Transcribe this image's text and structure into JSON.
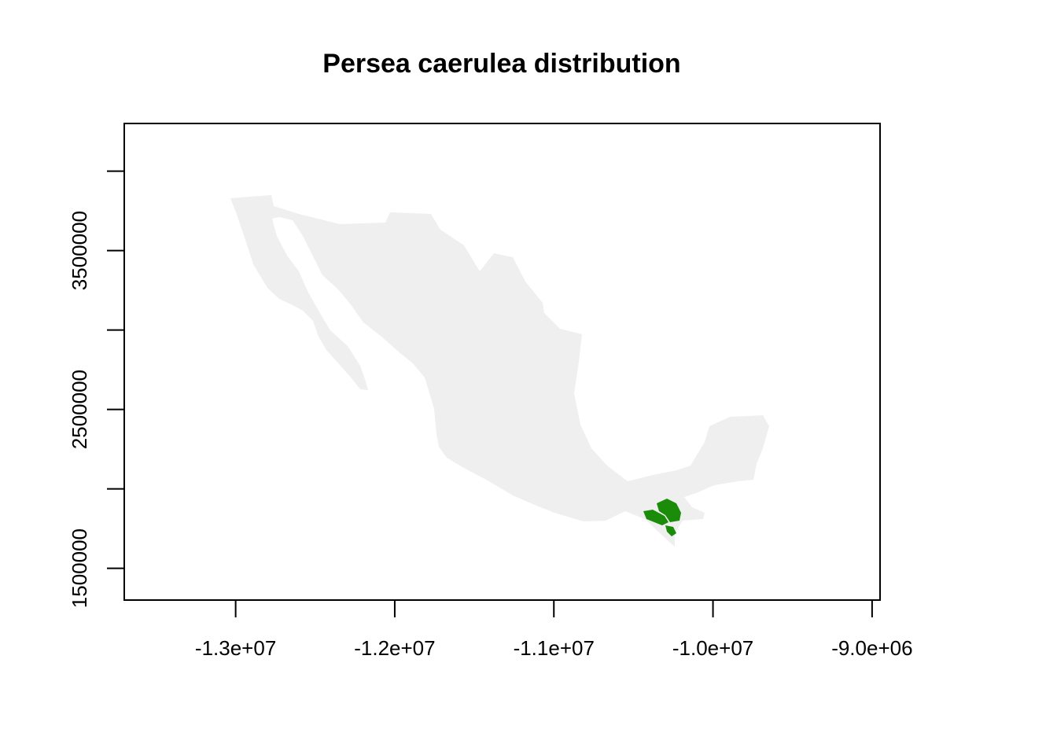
{
  "map": {
    "title": "Persea caerulea distribution",
    "land_color": "#efefef",
    "range_color": "#1a8c0a",
    "frame_color": "#000000",
    "x_axis": {
      "range": [
        -13700000,
        -8950000
      ],
      "ticks": [
        -13000000,
        -12000000,
        -11000000,
        -10000000,
        -9000000
      ],
      "tick_labels": [
        "-1.3e+07",
        "-1.2e+07",
        "-1.1e+07",
        "-1.0e+07",
        "-9.0e+06"
      ]
    },
    "y_axis": {
      "range": [
        1300000,
        4300000
      ],
      "ticks": [
        1500000,
        2000000,
        2500000,
        3000000,
        3500000,
        4000000
      ],
      "tick_labels": [
        "1500000",
        "",
        "2500000",
        "",
        "3500000",
        ""
      ]
    }
  }
}
